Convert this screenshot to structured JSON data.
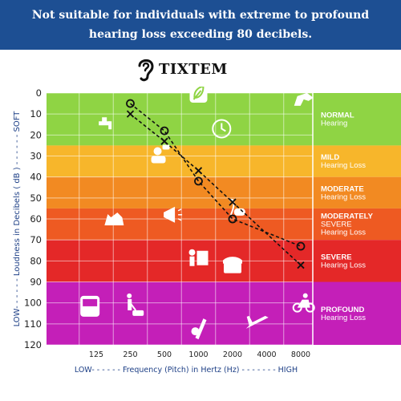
{
  "banner": {
    "line1": "Not suitable for individuals with extreme to profound",
    "line2": "hearing loss exceeding 80 decibels."
  },
  "brand": {
    "name": "TIXTEM",
    "icon": "ear-icon"
  },
  "chart_data": {
    "type": "scatter",
    "title": "",
    "xlabel": "LOW- - - - - - Frequency (Pitch) in Hertz (Hz) - - - - - - - HIGH",
    "ylabel": "LOW- - - - - - Loudness in Decibels ( dB ) - - - - - - SOFT",
    "x_ticks": [
      "125",
      "250",
      "500",
      "1000",
      "2000",
      "4000",
      "8000"
    ],
    "y_ticks": [
      0,
      10,
      20,
      30,
      40,
      50,
      60,
      70,
      80,
      90,
      100,
      110,
      120
    ],
    "ylim": [
      0,
      120
    ],
    "y_reversed": true,
    "x_scale": "log",
    "grid": true,
    "zones": [
      {
        "from": 0,
        "to": 25,
        "color": "#8fd444",
        "line1": "NORMAL",
        "line2": "Hearing"
      },
      {
        "from": 25,
        "to": 40,
        "color": "#f7b62b",
        "line1": "MILD",
        "line2": "Hearing Loss"
      },
      {
        "from": 40,
        "to": 55,
        "color": "#f28a22",
        "line1": "MODERATE",
        "line2": "Hearing Loss"
      },
      {
        "from": 55,
        "to": 70,
        "color": "#ee5a22",
        "line1": "MODERATELY",
        "line2": "SEVERE",
        "line3": "Hearing Loss"
      },
      {
        "from": 70,
        "to": 90,
        "color": "#e42828",
        "line1": "SEVERE",
        "line2": "Hearing Loss"
      },
      {
        "from": 90,
        "to": 120,
        "color": "#c41fb8",
        "line1": "PROFOUND",
        "line2": "Hearing Loss"
      }
    ],
    "series": [
      {
        "marker": "O",
        "x": [
          250,
          500,
          1000,
          2000,
          8000
        ],
        "y": [
          5,
          18,
          42,
          60,
          73
        ]
      },
      {
        "marker": "X",
        "x": [
          250,
          500,
          1000,
          2000,
          8000
        ],
        "y": [
          10,
          23,
          37,
          52,
          82
        ]
      }
    ],
    "icons": [
      {
        "name": "faucet-icon",
        "x": 150,
        "y": 15
      },
      {
        "name": "leaf-icon",
        "x": 1000,
        "y": 0
      },
      {
        "name": "birds-icon",
        "x": 8500,
        "y": 3
      },
      {
        "name": "clock-icon",
        "x": 1600,
        "y": 17
      },
      {
        "name": "person-talking-icon",
        "x": 450,
        "y": 30
      },
      {
        "name": "dog-icon",
        "x": 180,
        "y": 60
      },
      {
        "name": "megaphone-icon",
        "x": 580,
        "y": 58
      },
      {
        "name": "vacuum-icon",
        "x": 2200,
        "y": 55
      },
      {
        "name": "piano-icon",
        "x": 1000,
        "y": 79
      },
      {
        "name": "telephone-icon",
        "x": 2000,
        "y": 82
      },
      {
        "name": "bus-icon",
        "x": 110,
        "y": 102
      },
      {
        "name": "lawn-mower-icon",
        "x": 270,
        "y": 102
      },
      {
        "name": "chainsaw-icon",
        "x": 1000,
        "y": 112
      },
      {
        "name": "airplane-icon",
        "x": 3300,
        "y": 110
      },
      {
        "name": "motorcycle-icon",
        "x": 8500,
        "y": 100
      }
    ]
  }
}
